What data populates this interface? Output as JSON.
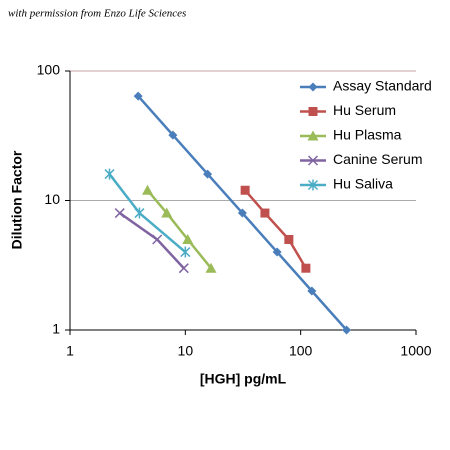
{
  "chart_data": {
    "type": "line",
    "caption": "with permission from Enzo Life Sciences",
    "x_label": "[HGH] pg/mL",
    "y_label": "Dilution Factor",
    "log_x": true,
    "log_y": true,
    "grid": true,
    "legend": "top-right",
    "xlim": [
      1,
      1000
    ],
    "ylim": [
      1,
      100
    ],
    "xticks": [
      1,
      10,
      100,
      1000
    ],
    "yticks": [
      1,
      10,
      100
    ],
    "series": [
      {
        "name": "Assay Standard",
        "color": "#4a7ebb",
        "marker": "diamond",
        "x": [
          3.9,
          7.8,
          15.6,
          31.25,
          62.5,
          125,
          250
        ],
        "values": [
          64,
          32,
          16,
          8,
          4,
          2,
          1
        ]
      },
      {
        "name": "Hu Serum",
        "color": "#c0504d",
        "marker": "square",
        "x": [
          33,
          49,
          79,
          111
        ],
        "values": [
          12,
          8,
          5,
          3
        ]
      },
      {
        "name": "Hu Plasma",
        "color": "#9bbb59",
        "marker": "triangle",
        "x": [
          4.7,
          6.9,
          10.5,
          16.7
        ],
        "values": [
          12,
          8,
          5,
          3
        ]
      },
      {
        "name": "Canine Serum",
        "color": "#8064a2",
        "marker": "x",
        "x": [
          2.7,
          5.7,
          9.7
        ],
        "values": [
          8,
          5,
          3
        ]
      },
      {
        "name": "Hu Saliva",
        "color": "#4bacc6",
        "marker": "star",
        "x": [
          2.2,
          4,
          10
        ],
        "values": [
          16,
          8,
          4
        ]
      }
    ]
  }
}
